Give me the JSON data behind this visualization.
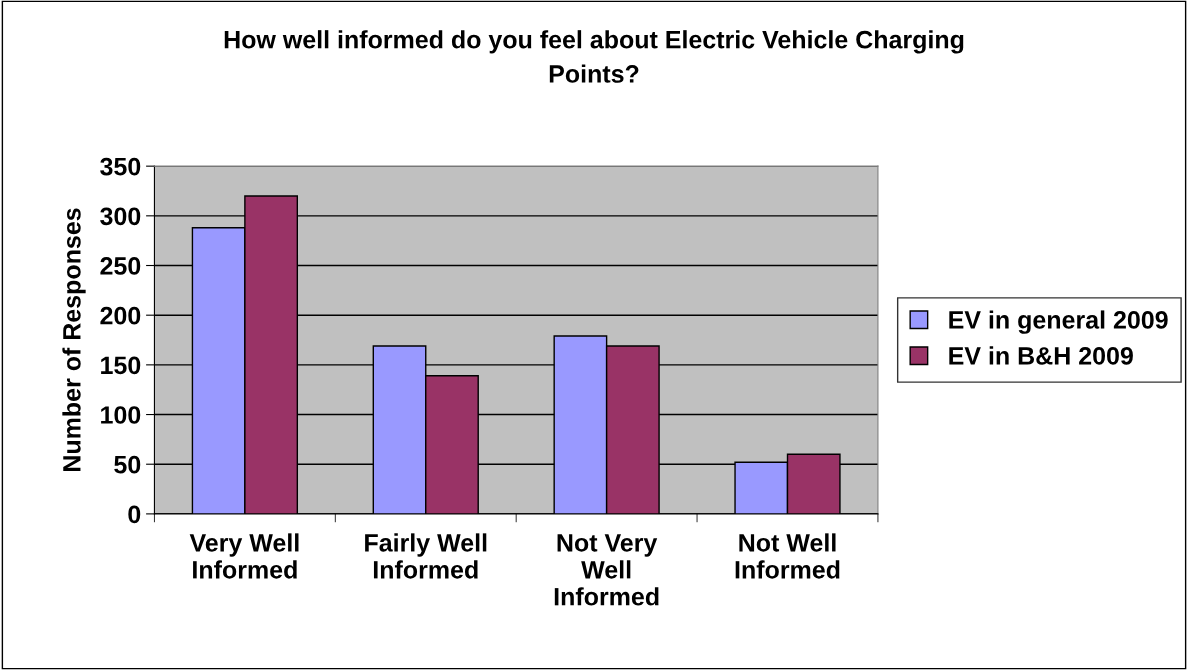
{
  "chart_data": {
    "type": "bar",
    "title": "How well informed do you feel about Electric Vehicle Charging\nPoints?",
    "ylabel": "Number of Responses",
    "categories": [
      "Very Well\nInformed",
      "Fairly Well\nInformed",
      "Not Very\nWell\nInformed",
      "Not Well\nInformed"
    ],
    "series": [
      {
        "name": "EV in general 2009",
        "color": "#9999ff",
        "values": [
          288,
          169,
          179,
          52
        ]
      },
      {
        "name": "EV in B&H 2009",
        "color": "#993366",
        "values": [
          320,
          139,
          169,
          60
        ]
      }
    ],
    "ylim": [
      0,
      350
    ],
    "yticks": [
      0,
      50,
      100,
      150,
      200,
      250,
      300,
      350
    ],
    "grid": "y",
    "legend": "right"
  }
}
